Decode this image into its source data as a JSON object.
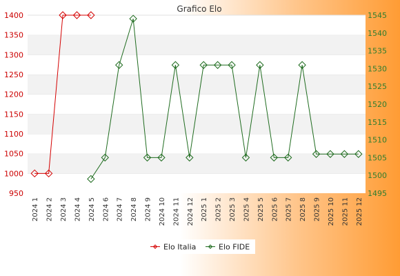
{
  "chart_data": {
    "type": "line",
    "title": "Grafico Elo",
    "categories": [
      "2024 1",
      "2024 2",
      "2024 3",
      "2024 4",
      "2024 5",
      "2024 6",
      "2024 7",
      "2024 8",
      "2024 9",
      "2024 10",
      "2024 11",
      "2024 12",
      "2025 1",
      "2025 2",
      "2025 3",
      "2025 4",
      "2025 5",
      "2025 6",
      "2025 7",
      "2025 8",
      "2025 9",
      "2025 10",
      "2025 11",
      "2025 12"
    ],
    "series": [
      {
        "name": "Elo Italia",
        "axis": "left",
        "color": "#d40000",
        "values": [
          1000,
          1000,
          1400,
          1400,
          1400,
          null,
          null,
          null,
          null,
          null,
          null,
          null,
          null,
          null,
          null,
          null,
          null,
          null,
          null,
          null,
          null,
          null,
          null,
          null
        ]
      },
      {
        "name": "Elo FIDE",
        "axis": "right",
        "color": "#1e6b1e",
        "values": [
          null,
          null,
          null,
          null,
          1499,
          1505,
          1531,
          1544,
          1505,
          1505,
          1531,
          1505,
          1531,
          1531,
          1531,
          1505,
          1531,
          1505,
          1505,
          1531,
          1506,
          1506,
          1506,
          1506
        ]
      }
    ],
    "y_left": {
      "ylim": [
        950,
        1400
      ],
      "ticks": [
        950,
        1000,
        1050,
        1100,
        1150,
        1200,
        1250,
        1300,
        1350,
        1400
      ]
    },
    "y_right": {
      "ylim": [
        1495,
        1545
      ],
      "ticks": [
        1495,
        1500,
        1505,
        1510,
        1515,
        1520,
        1525,
        1530,
        1535,
        1540,
        1545
      ]
    },
    "grid": "horizontal bands",
    "legend_position": "bottom-center"
  }
}
